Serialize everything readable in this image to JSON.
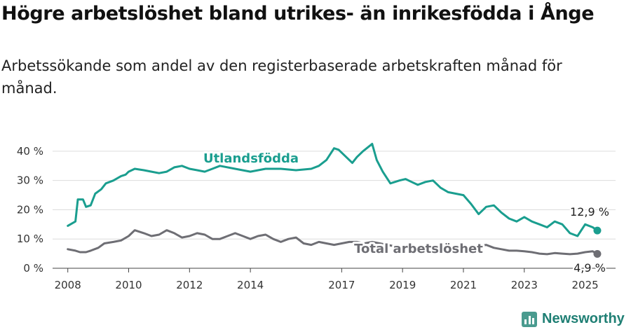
{
  "title": "Högre arbetslöshet bland utrikes- än inrikesfödda i Ånge",
  "subtitle": "Arbetssökande som andel av den registerbaserade arbetskraften månad för månad.",
  "brand": {
    "name": "Newsworthy",
    "color": "#1f7f74",
    "icon": "newsworthy-logo-icon"
  },
  "chart_data": {
    "type": "line",
    "title": "Högre arbetslöshet bland utrikes- än inrikesfödda i Ånge",
    "xlabel": "",
    "ylabel": "",
    "xlim": [
      2007.5,
      2026.0
    ],
    "ylim": [
      0,
      45
    ],
    "x_ticks": [
      2008,
      2010,
      2012,
      2014,
      2017,
      2019,
      2021,
      2023,
      2025
    ],
    "x_tick_labels": [
      "2008",
      "2010",
      "2012",
      "2014",
      "2017",
      "2019",
      "2021",
      "2023",
      "2025"
    ],
    "y_ticks": [
      0,
      10,
      20,
      30,
      40
    ],
    "y_tick_labels": [
      "0 %",
      "10 %",
      "20 %",
      "30 %",
      "40 %"
    ],
    "grid": "horizontal",
    "legend": "direct-labels",
    "series": [
      {
        "name": "Utlandsfödda",
        "color": "#1a9e8f",
        "end_label": "12,9 %",
        "x": [
          2008.0,
          2008.25,
          2008.33,
          2008.5,
          2008.6,
          2008.75,
          2008.9,
          2009.1,
          2009.25,
          2009.5,
          2009.75,
          2009.9,
          2010.0,
          2010.2,
          2010.5,
          2010.75,
          2011.0,
          2011.25,
          2011.5,
          2011.75,
          2012.0,
          2012.25,
          2012.5,
          2012.75,
          2013.0,
          2013.5,
          2014.0,
          2014.5,
          2015.0,
          2015.5,
          2016.0,
          2016.25,
          2016.5,
          2016.75,
          2016.9,
          2017.1,
          2017.35,
          2017.5,
          2017.7,
          2018.0,
          2018.15,
          2018.35,
          2018.6,
          2018.9,
          2019.1,
          2019.3,
          2019.5,
          2019.75,
          2020.0,
          2020.25,
          2020.5,
          2020.75,
          2021.0,
          2021.25,
          2021.5,
          2021.75,
          2022.0,
          2022.25,
          2022.5,
          2022.75,
          2023.0,
          2023.25,
          2023.5,
          2023.75,
          2024.0,
          2024.25,
          2024.5,
          2024.75,
          2025.0,
          2025.25,
          2025.4
        ],
        "values": [
          14.5,
          16,
          23.5,
          23.5,
          21,
          21.5,
          25.5,
          27,
          29,
          30,
          31.5,
          32,
          33,
          34,
          33.5,
          33,
          32.5,
          33,
          34.5,
          35,
          34,
          33.5,
          33,
          34,
          35,
          34,
          33,
          34,
          34,
          33.5,
          34,
          35,
          37,
          41,
          40.5,
          38.5,
          36,
          38,
          40,
          42.5,
          37,
          33,
          29,
          30,
          30.5,
          29.5,
          28.5,
          29.5,
          30,
          27.5,
          26,
          25.5,
          25,
          22,
          18.5,
          21,
          21.5,
          19,
          17,
          16,
          17.5,
          16,
          15,
          14,
          16,
          15,
          12,
          11,
          15,
          14,
          12.9
        ]
      },
      {
        "name": "Total arbetslöshet",
        "color": "#6e6e74",
        "end_label": "4,9 %",
        "x": [
          2008.0,
          2008.25,
          2008.4,
          2008.6,
          2008.75,
          2009.0,
          2009.2,
          2009.5,
          2009.75,
          2010.0,
          2010.2,
          2010.5,
          2010.75,
          2011.0,
          2011.25,
          2011.5,
          2011.75,
          2012.0,
          2012.25,
          2012.5,
          2012.75,
          2013.0,
          2013.25,
          2013.5,
          2013.75,
          2014.0,
          2014.25,
          2014.5,
          2014.75,
          2015.0,
          2015.25,
          2015.5,
          2015.75,
          2016.0,
          2016.25,
          2016.5,
          2016.75,
          2017.0,
          2017.25,
          2017.5,
          2017.75,
          2018.0,
          2018.25,
          2018.5,
          2018.75,
          2019.0,
          2019.25,
          2019.5,
          2019.75,
          2020.0,
          2020.25,
          2020.5,
          2020.75,
          2021.0,
          2021.25,
          2021.5,
          2021.75,
          2022.0,
          2022.25,
          2022.5,
          2022.75,
          2023.0,
          2023.25,
          2023.5,
          2023.75,
          2024.0,
          2024.25,
          2024.5,
          2024.75,
          2025.0,
          2025.25,
          2025.4
        ],
        "values": [
          6.5,
          6,
          5.5,
          5.5,
          6,
          7,
          8.5,
          9,
          9.5,
          11,
          13,
          12,
          11,
          11.5,
          13,
          12,
          10.5,
          11,
          12,
          11.5,
          10,
          10,
          11,
          12,
          11,
          10,
          11,
          11.5,
          10,
          9,
          10,
          10.5,
          8.5,
          8,
          9,
          8.5,
          8,
          8.5,
          9,
          9,
          8.5,
          9,
          8.5,
          8,
          7.5,
          7.5,
          7,
          7.5,
          7.5,
          7.2,
          7.5,
          7.2,
          7,
          7.5,
          7,
          7.5,
          8,
          7,
          6.5,
          6,
          6,
          5.8,
          5.5,
          5,
          4.8,
          5.2,
          5,
          4.8,
          5,
          5.5,
          5.8,
          4.9
        ]
      }
    ]
  }
}
